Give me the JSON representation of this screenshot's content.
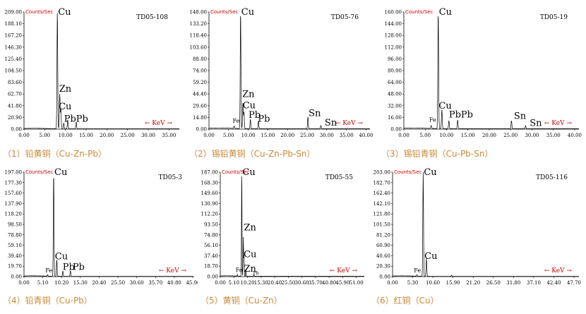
{
  "common": {
    "counts_label": "Counts/Sec",
    "kev_label": "← KeV →",
    "colors": {
      "axis": "#000000",
      "counts": "#cc0000",
      "kev": "#cc0000",
      "caption": "#c98a3a",
      "line": "#000000"
    }
  },
  "chart_data": [
    {
      "type": "line",
      "id": "TD05-108",
      "caption": "（1）铅黄铜（Cu-Zn-Pb）",
      "ymax": 209.0,
      "yticks": [
        "209.00",
        "188.10",
        "167.20",
        "146.30",
        "125.40",
        "104.50",
        "83.60",
        "62.70",
        "41.80",
        "20.90",
        "0.00"
      ],
      "xmax": 37.5,
      "xticks": [
        "0.00",
        "5.00",
        "10.00",
        "15.00",
        "20.00",
        "25.00",
        "30.00",
        "35.00"
      ],
      "xtick_values": [
        0,
        5,
        10,
        15,
        20,
        25,
        30,
        35
      ],
      "peaks": [
        [
          8.05,
          209
        ],
        [
          8.63,
          62
        ],
        [
          8.9,
          34
        ],
        [
          9.6,
          10
        ],
        [
          10.55,
          16
        ],
        [
          12.6,
          12
        ]
      ],
      "labels": [
        {
          "text": "Cu",
          "x": 8.05,
          "y": 209,
          "size": "big"
        },
        {
          "text": "Zn",
          "x": 8.3,
          "y": 72,
          "size": "big"
        },
        {
          "text": "Cu",
          "x": 8.2,
          "y": 40,
          "size": "big"
        },
        {
          "text": "Pb",
          "x": 9.5,
          "y": 18,
          "size": "big"
        },
        {
          "text": "Pb",
          "x": 12.4,
          "y": 18,
          "size": "big"
        }
      ]
    },
    {
      "type": "line",
      "id": "TD05-76",
      "caption": "（2）锡铅黄铜（Cu-Zn-Pb-Sn）",
      "ymax": 148.0,
      "yticks": [
        "148.00",
        "133.20",
        "118.40",
        "103.60",
        "88.80",
        "74.00",
        "59.20",
        "44.40",
        "29.60",
        "14.80",
        "0.00"
      ],
      "xmax": 41,
      "xticks": [
        "0.00",
        "5.00",
        "10.00",
        "15.00",
        "20.00",
        "25.00",
        "30.00",
        "35.00",
        "40.00"
      ],
      "xtick_values": [
        0,
        5,
        10,
        15,
        20,
        25,
        30,
        35,
        40
      ],
      "peaks": [
        [
          6.4,
          3
        ],
        [
          8.05,
          148
        ],
        [
          8.63,
          33
        ],
        [
          8.9,
          21
        ],
        [
          10.55,
          12
        ],
        [
          12.6,
          10
        ],
        [
          25.2,
          15
        ],
        [
          28.5,
          4
        ]
      ],
      "labels": [
        {
          "text": "Fe",
          "x": 6.2,
          "y": 8,
          "size": "small"
        },
        {
          "text": "Cu",
          "x": 8.05,
          "y": 148,
          "size": "big"
        },
        {
          "text": "Zn",
          "x": 8.3,
          "y": 44,
          "size": "big"
        },
        {
          "text": "Cu",
          "x": 8.4,
          "y": 30,
          "size": "big"
        },
        {
          "text": "Pb",
          "x": 9.9,
          "y": 18,
          "size": "big"
        },
        {
          "text": "Pb",
          "x": 12.3,
          "y": 13,
          "size": "big"
        },
        {
          "text": "Sn",
          "x": 25.2,
          "y": 20,
          "size": "big"
        },
        {
          "text": "Sn",
          "x": 29.3,
          "y": 8,
          "size": "big"
        }
      ]
    },
    {
      "type": "line",
      "id": "TD05-19",
      "caption": "（3）锡铅青铜（Cu-Pb-Sn）",
      "ymax": 160.0,
      "yticks": [
        "160.00",
        "144.00",
        "128.00",
        "112.00",
        "96.00",
        "80.00",
        "64.00",
        "48.00",
        "32.00",
        "16.00",
        "0.00"
      ],
      "xmax": 41,
      "xticks": [
        "0.00",
        "5.00",
        "10.00",
        "15.00",
        "20.00",
        "25.00",
        "30.00",
        "35.00",
        "40.00"
      ],
      "xtick_values": [
        0,
        5,
        10,
        15,
        20,
        25,
        30,
        35,
        40
      ],
      "peaks": [
        [
          6.4,
          4
        ],
        [
          8.05,
          160
        ],
        [
          8.9,
          26
        ],
        [
          10.55,
          11
        ],
        [
          12.6,
          12
        ],
        [
          25.2,
          11
        ],
        [
          28.5,
          4
        ]
      ],
      "labels": [
        {
          "text": "Fe",
          "x": 6.1,
          "y": 10,
          "size": "small"
        },
        {
          "text": "Cu",
          "x": 8.05,
          "y": 160,
          "size": "big"
        },
        {
          "text": "Cu",
          "x": 8.0,
          "y": 32,
          "size": "big"
        },
        {
          "text": "Pb",
          "x": 10.4,
          "y": 20,
          "size": "big"
        },
        {
          "text": "Pb",
          "x": 13.2,
          "y": 20,
          "size": "big"
        },
        {
          "text": "Sn",
          "x": 25.6,
          "y": 18,
          "size": "big"
        },
        {
          "text": "Sn",
          "x": 29.3,
          "y": 8,
          "size": "big"
        }
      ]
    },
    {
      "type": "line",
      "id": "TD05-3",
      "caption": "（4）铅青铜（Cu-Pb）",
      "ymax": 197.0,
      "yticks": [
        "197.00",
        "177.30",
        "157.60",
        "137.90",
        "118.20",
        "98.50",
        "78.80",
        "59.10",
        "39.40",
        "19.70",
        "0.00"
      ],
      "xmax": 46,
      "xticks": [
        "0.00",
        "5.10",
        "10.20",
        "15.30",
        "20.40",
        "25.50",
        "30.60",
        "35.70",
        "40.80",
        "45.90"
      ],
      "xtick_values": [
        0,
        5.1,
        10.2,
        15.3,
        20.4,
        25.5,
        30.6,
        35.7,
        40.8,
        45.9
      ],
      "peaks": [
        [
          6.4,
          3
        ],
        [
          8.05,
          197
        ],
        [
          8.9,
          32
        ],
        [
          10.55,
          10
        ],
        [
          12.6,
          11
        ]
      ],
      "labels": [
        {
          "text": "Fe",
          "x": 6.0,
          "y": 8,
          "size": "small"
        },
        {
          "text": "Cu",
          "x": 8.05,
          "y": 197,
          "size": "big"
        },
        {
          "text": "Cu",
          "x": 8.2,
          "y": 38,
          "size": "big"
        },
        {
          "text": "Pb",
          "x": 10.3,
          "y": 18,
          "size": "big"
        },
        {
          "text": "Pb",
          "x": 13.0,
          "y": 18,
          "size": "big"
        }
      ]
    },
    {
      "type": "line",
      "id": "TD05-55",
      "caption": "（5）黄铜（Cu-Zn）",
      "ymax": 187.0,
      "yticks": [
        "187.00",
        "168.30",
        "149.60",
        "130.90",
        "112.20",
        "93.50",
        "74.80",
        "56.10",
        "37.40",
        "18.70",
        "0.00"
      ],
      "xmax": 54,
      "xticks": [
        "0.00",
        "5.10",
        "10.20",
        "15.30",
        "20.40",
        "25.50",
        "30.60",
        "35.70",
        "40.80",
        "45.90",
        "51.00"
      ],
      "xtick_values": [
        0,
        5.1,
        10.2,
        15.3,
        20.4,
        25.5,
        30.6,
        35.7,
        40.8,
        45.9,
        51.0
      ],
      "peaks": [
        [
          6.4,
          3
        ],
        [
          8.05,
          187
        ],
        [
          8.63,
          70
        ],
        [
          8.9,
          38
        ],
        [
          9.6,
          12
        ],
        [
          12.6,
          3
        ]
      ],
      "labels": [
        {
          "text": "Fe",
          "x": 6.0,
          "y": 8,
          "size": "small"
        },
        {
          "text": "Cu",
          "x": 8.05,
          "y": 187,
          "size": "big"
        },
        {
          "text": "Zn",
          "x": 8.6,
          "y": 88,
          "size": "big"
        },
        {
          "text": "Cu",
          "x": 8.5,
          "y": 40,
          "size": "big"
        },
        {
          "text": "Zn",
          "x": 8.6,
          "y": 14,
          "size": "big"
        },
        {
          "text": "Pb",
          "x": 12.6,
          "y": 4,
          "size": "tiny"
        }
      ]
    },
    {
      "type": "line",
      "id": "TD05-116",
      "caption": "（6）红铜（Cu）",
      "ymax": 203.0,
      "yticks": [
        "203.00",
        "182.70",
        "162.40",
        "142.10",
        "121.80",
        "101.50",
        "81.20",
        "60.90",
        "40.60",
        "20.30",
        "0.00"
      ],
      "xmax": 49,
      "xticks": [
        "0.00",
        "5.30",
        "10.60",
        "15.90",
        "21.20",
        "26.50",
        "31.80",
        "37.10",
        "42.40",
        "47.70"
      ],
      "xtick_values": [
        0,
        5.3,
        10.6,
        15.9,
        21.2,
        26.5,
        31.8,
        37.1,
        42.4,
        47.7
      ],
      "peaks": [
        [
          6.4,
          3
        ],
        [
          8.05,
          203
        ],
        [
          8.9,
          35
        ],
        [
          15.5,
          2
        ]
      ],
      "labels": [
        {
          "text": "Fe",
          "x": 5.8,
          "y": 8,
          "size": "small"
        },
        {
          "text": "Cu",
          "x": 8.05,
          "y": 203,
          "size": "big"
        },
        {
          "text": "Cu",
          "x": 8.2,
          "y": 40,
          "size": "big"
        }
      ]
    }
  ]
}
